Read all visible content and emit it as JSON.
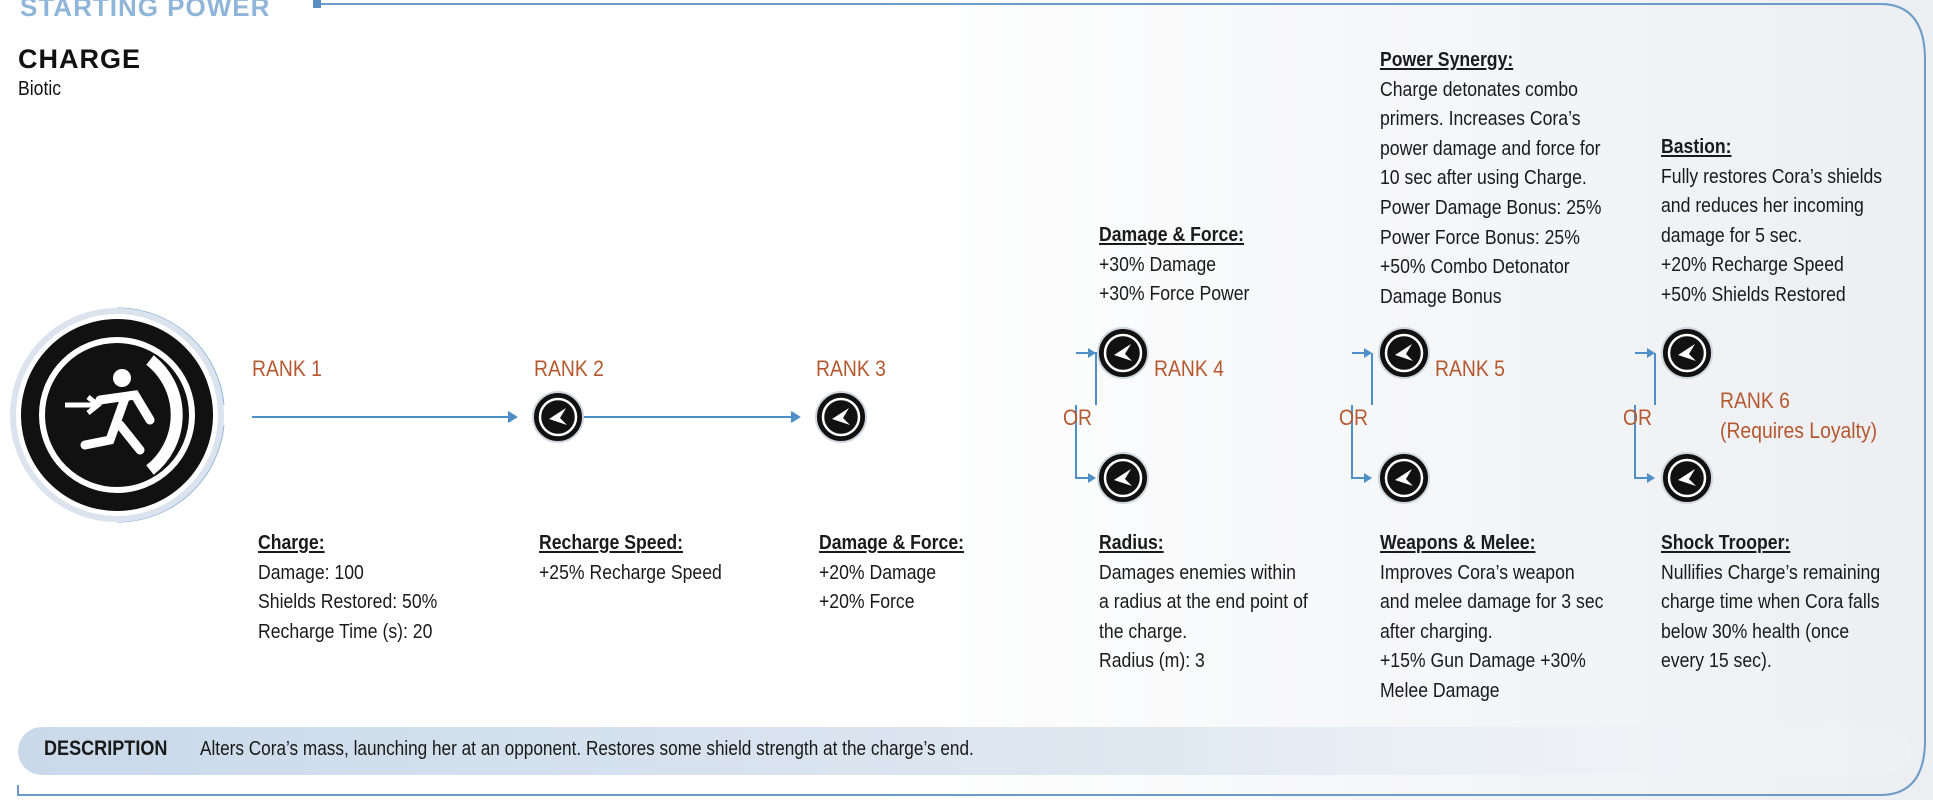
{
  "header": {
    "title": "STARTING POWER"
  },
  "power": {
    "name": "CHARGE",
    "type": "Biotic"
  },
  "or_label": "OR",
  "ranks": [
    {
      "label": "RANK 1",
      "options": [
        {
          "title": "Charge:",
          "lines": [
            "Damage: 100",
            "Shields Restored: 50%",
            "Recharge Time (s): 20"
          ]
        }
      ]
    },
    {
      "label": "RANK 2",
      "options": [
        {
          "title": "Recharge Speed:",
          "lines": [
            "+25% Recharge Speed"
          ]
        }
      ]
    },
    {
      "label": "RANK 3",
      "options": [
        {
          "title": "Damage & Force:",
          "lines": [
            "+20% Damage",
            "+20% Force"
          ]
        }
      ]
    },
    {
      "label": "RANK 4",
      "options": [
        {
          "title": "Damage & Force:",
          "lines": [
            "+30% Damage",
            "+30% Force Power"
          ]
        },
        {
          "title": "Radius:",
          "lines": [
            "Damages enemies within",
            "a radius at the end point of",
            "the charge.",
            "Radius (m): 3"
          ]
        }
      ]
    },
    {
      "label": "RANK 5",
      "options": [
        {
          "title": "Power Synergy:",
          "lines": [
            "Charge detonates combo",
            "primers. Increases Cora’s",
            "power damage and force for",
            "10 sec after using Charge.",
            "Power Damage Bonus: 25%",
            "Power Force Bonus: 25%",
            "+50% Combo Detonator",
            "Damage Bonus"
          ]
        },
        {
          "title": "Weapons & Melee:",
          "lines": [
            "Improves Cora’s weapon",
            "and melee damage for 3 sec",
            "after charging.",
            "+15% Gun Damage +30%",
            "Melee Damage"
          ]
        }
      ]
    },
    {
      "label": "RANK 6",
      "note": "(Requires Loyalty)",
      "options": [
        {
          "title": "Bastion:",
          "lines": [
            "Fully restores Cora’s shields",
            "and reduces her incoming",
            "damage for 5 sec.",
            "+20% Recharge Speed",
            "+50% Shields Restored"
          ]
        },
        {
          "title": "Shock Trooper:",
          "lines": [
            "Nullifies Charge’s remaining",
            "charge time when Cora falls",
            "below 30% health (once",
            "every 15 sec)."
          ]
        }
      ]
    }
  ],
  "description": {
    "label": "DESCRIPTION",
    "text": "Alters Cora’s mass, launching her at an opponent. Restores some shield strength at the charge’s end."
  }
}
